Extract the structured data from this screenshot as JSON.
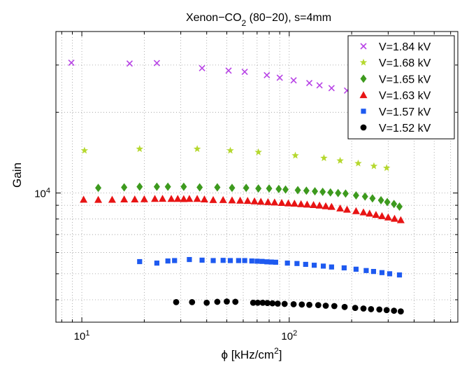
{
  "chart_data": {
    "type": "scatter",
    "title": "Xenon−CO2 (80−20), s=4mm",
    "title_parts": {
      "prefix": "Xenon−CO",
      "subscript": "2",
      "suffix": " (80−20), s=4mm"
    },
    "xlabel": "ϕ [kHz/cm2]",
    "xlabel_parts": {
      "prefix": "ϕ [kHz/cm",
      "superscript": "2",
      "suffix": "]"
    },
    "ylabel": "Gain",
    "x_scale": "log",
    "y_scale": "log",
    "xlim": [
      7.5,
      650
    ],
    "ylim": [
      3300,
      40000
    ],
    "grid": true,
    "legend_position": "top-right",
    "x_ticks": [
      {
        "value": 10,
        "base": "10",
        "exp": "1"
      },
      {
        "value": 100,
        "base": "10",
        "exp": "2"
      }
    ],
    "y_ticks": [
      {
        "value": 10000,
        "base": "10",
        "exp": "4"
      }
    ],
    "series": [
      {
        "name": "V=1.84 kV",
        "marker": "x",
        "color": "#b844e6",
        "x": [
          8.9,
          17,
          23,
          38,
          51,
          61,
          78,
          90,
          105,
          125,
          140,
          160,
          190,
          225,
          260,
          305
        ],
        "y": [
          30600,
          30400,
          30500,
          29200,
          28600,
          28300,
          27500,
          26900,
          26300,
          25700,
          25200,
          24600,
          24100,
          23600,
          23100,
          22700
        ]
      },
      {
        "name": "V=1.68 kV",
        "marker": "star",
        "color": "#b5d82e",
        "x": [
          10.3,
          19,
          36,
          52,
          71,
          107,
          147,
          176,
          215,
          256,
          295
        ],
        "y": [
          14400,
          14600,
          14600,
          14400,
          14200,
          13800,
          13500,
          13200,
          12900,
          12600,
          12400
        ]
      },
      {
        "name": "V=1.65 kV",
        "marker": "diamond",
        "color": "#3d9a1e",
        "x": [
          12,
          16,
          19,
          23,
          26,
          31,
          37,
          45,
          53,
          62,
          71,
          80,
          89,
          96,
          110,
          121,
          133,
          145,
          158,
          172,
          187,
          210,
          232,
          252,
          277,
          297,
          320,
          340
        ],
        "y": [
          10450,
          10500,
          10550,
          10550,
          10550,
          10550,
          10500,
          10500,
          10450,
          10450,
          10400,
          10400,
          10350,
          10300,
          10250,
          10200,
          10150,
          10100,
          10050,
          10000,
          9950,
          9800,
          9700,
          9550,
          9400,
          9250,
          9100,
          8900
        ]
      },
      {
        "name": "V=1.63 kV",
        "marker": "triangle",
        "color": "#e81414",
        "x": [
          10.2,
          12,
          14,
          16,
          18,
          20,
          22.5,
          24.5,
          27,
          29,
          31,
          33,
          36,
          39,
          43,
          48,
          53,
          58,
          63,
          68,
          73,
          79,
          85,
          92,
          99,
          106,
          114,
          122,
          131,
          140,
          150,
          160,
          176,
          190,
          210,
          228,
          244,
          262,
          280,
          300,
          322,
          345
        ],
        "y": [
          9460,
          9440,
          9450,
          9480,
          9480,
          9490,
          9520,
          9530,
          9520,
          9520,
          9510,
          9520,
          9520,
          9480,
          9430,
          9430,
          9400,
          9380,
          9360,
          9320,
          9290,
          9260,
          9230,
          9200,
          9160,
          9140,
          9100,
          9070,
          9030,
          8990,
          8940,
          8890,
          8770,
          8680,
          8570,
          8480,
          8390,
          8300,
          8210,
          8120,
          8030,
          7930
        ]
      },
      {
        "name": "V=1.57 kV",
        "marker": "square",
        "color": "#1e5af0",
        "x": [
          19,
          23,
          26,
          28,
          33,
          38,
          43,
          48,
          52,
          57,
          61,
          66,
          70,
          74,
          78,
          82,
          86,
          98,
          109,
          120,
          132,
          146,
          160,
          184,
          210,
          235,
          255,
          280,
          305,
          340
        ],
        "y": [
          5550,
          5480,
          5580,
          5600,
          5650,
          5620,
          5600,
          5610,
          5600,
          5600,
          5600,
          5580,
          5570,
          5560,
          5540,
          5530,
          5520,
          5480,
          5460,
          5420,
          5380,
          5340,
          5300,
          5260,
          5200,
          5140,
          5100,
          5050,
          5000,
          4950
        ]
      },
      {
        "name": "V=1.52 kV",
        "marker": "circle",
        "color": "#000000",
        "x": [
          28.5,
          34,
          40,
          45,
          50,
          55,
          67,
          70.5,
          74.5,
          78.5,
          83,
          88,
          95,
          105,
          115,
          125,
          138,
          150,
          165,
          185,
          208,
          228,
          248,
          272,
          295,
          320,
          345
        ],
        "y": [
          3920,
          3920,
          3900,
          3930,
          3940,
          3930,
          3900,
          3900,
          3900,
          3890,
          3880,
          3870,
          3860,
          3850,
          3840,
          3830,
          3820,
          3800,
          3790,
          3760,
          3730,
          3710,
          3690,
          3680,
          3660,
          3640,
          3620
        ]
      }
    ]
  }
}
